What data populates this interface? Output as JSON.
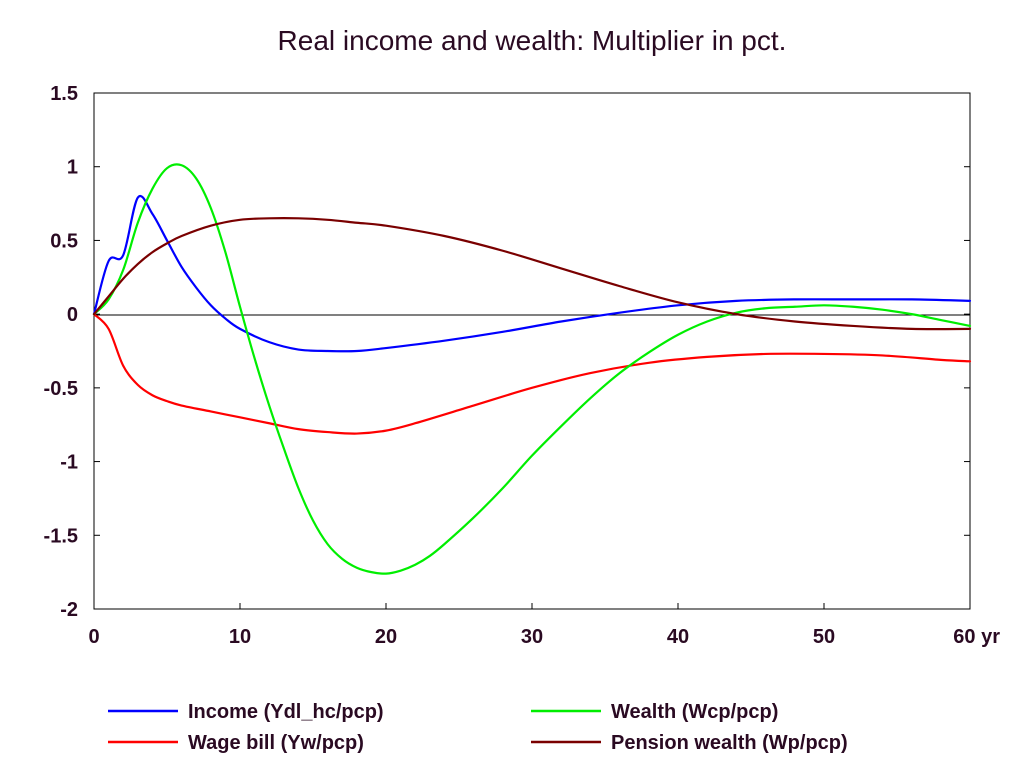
{
  "chart_data": {
    "type": "line",
    "title": "Real income and wealth: Multiplier in pct.",
    "xlabel": "",
    "ylabel": "",
    "x_unit_suffix": "yr",
    "xlim": [
      0,
      60
    ],
    "ylim": [
      -2,
      1.5
    ],
    "xticks": [
      0,
      10,
      20,
      30,
      40,
      50,
      60
    ],
    "xtick_labels": [
      "0",
      "10",
      "20",
      "30",
      "40",
      "50",
      "60 yr"
    ],
    "yticks": [
      1.5,
      1,
      0.5,
      0,
      -0.5,
      -1,
      -1.5,
      -2
    ],
    "ytick_labels": [
      "1.5",
      "1",
      "0.5",
      "0",
      "-0.5",
      "-1",
      "-1.5",
      "-2"
    ],
    "grid": false,
    "zero_line": true,
    "legend_position": "bottom",
    "series": [
      {
        "name": "Income (Ydl_hc/pcp)",
        "color": "#0000ff",
        "x": [
          0,
          1,
          2,
          3,
          4,
          5,
          6,
          7,
          8,
          9,
          10,
          12,
          14,
          16,
          18,
          20,
          24,
          28,
          32,
          36,
          40,
          44,
          48,
          52,
          56,
          60
        ],
        "y": [
          0,
          0.36,
          0.4,
          0.79,
          0.68,
          0.5,
          0.32,
          0.18,
          0.06,
          -0.03,
          -0.1,
          -0.19,
          -0.24,
          -0.25,
          -0.25,
          -0.23,
          -0.18,
          -0.12,
          -0.05,
          0.01,
          0.06,
          0.09,
          0.1,
          0.1,
          0.1,
          0.09
        ]
      },
      {
        "name": "Wage bill (Yw/pcp)",
        "color": "#ff0000",
        "x": [
          0,
          1,
          2,
          3,
          4,
          5,
          6,
          8,
          10,
          12,
          14,
          16,
          18,
          20,
          22,
          26,
          30,
          34,
          38,
          42,
          46,
          50,
          54,
          58,
          60
        ],
        "y": [
          0,
          -0.1,
          -0.35,
          -0.48,
          -0.55,
          -0.59,
          -0.62,
          -0.66,
          -0.7,
          -0.74,
          -0.78,
          -0.8,
          -0.81,
          -0.79,
          -0.74,
          -0.62,
          -0.5,
          -0.4,
          -0.33,
          -0.29,
          -0.27,
          -0.27,
          -0.28,
          -0.31,
          -0.32
        ]
      },
      {
        "name": "Wealth (Wcp/pcp)",
        "color": "#00ee00",
        "x": [
          0,
          1,
          2,
          3,
          4,
          5,
          6,
          7,
          8,
          9,
          10,
          11,
          12,
          13,
          14,
          15,
          16,
          17,
          18,
          19,
          20,
          21,
          22,
          23,
          24,
          26,
          28,
          30,
          32,
          34,
          36,
          38,
          40,
          42,
          44,
          46,
          48,
          50,
          52,
          54,
          56,
          58,
          60
        ],
        "y": [
          0,
          0.1,
          0.3,
          0.62,
          0.85,
          0.99,
          1.01,
          0.92,
          0.72,
          0.42,
          0.05,
          -0.3,
          -0.62,
          -0.91,
          -1.18,
          -1.4,
          -1.56,
          -1.66,
          -1.72,
          -1.75,
          -1.76,
          -1.74,
          -1.7,
          -1.64,
          -1.56,
          -1.38,
          -1.18,
          -0.96,
          -0.76,
          -0.57,
          -0.4,
          -0.26,
          -0.14,
          -0.05,
          0.01,
          0.04,
          0.05,
          0.06,
          0.05,
          0.03,
          0.0,
          -0.04,
          -0.08
        ]
      },
      {
        "name": "Pension wealth (Wp/pcp)",
        "color": "#7a0000",
        "x": [
          0,
          1,
          2,
          3,
          4,
          5,
          6,
          8,
          10,
          12,
          14,
          16,
          18,
          20,
          24,
          28,
          32,
          36,
          40,
          44,
          48,
          52,
          56,
          60
        ],
        "y": [
          0,
          0.12,
          0.24,
          0.34,
          0.42,
          0.48,
          0.53,
          0.6,
          0.64,
          0.65,
          0.65,
          0.64,
          0.62,
          0.6,
          0.53,
          0.43,
          0.31,
          0.19,
          0.08,
          0.0,
          -0.05,
          -0.08,
          -0.1,
          -0.1
        ]
      }
    ]
  }
}
